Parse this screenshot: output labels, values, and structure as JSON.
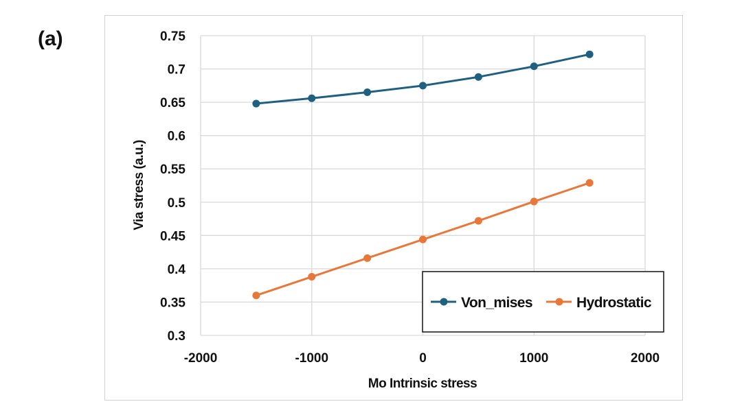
{
  "panel_label": "(a)",
  "chart_data": {
    "type": "line",
    "title": "",
    "xlabel": "Mo Intrinsic stress",
    "ylabel": "Via stress (a.u.)",
    "xlim": [
      -2000,
      2000
    ],
    "ylim": [
      0.3,
      0.75
    ],
    "xticks": [
      -2000,
      -1000,
      0,
      1000,
      2000
    ],
    "xtick_labels": [
      "-2000",
      "-1000",
      "0",
      "1000",
      "2000"
    ],
    "yticks": [
      0.3,
      0.35,
      0.4,
      0.45,
      0.5,
      0.55,
      0.6,
      0.65,
      0.7,
      0.75
    ],
    "ytick_labels": [
      "0.3",
      "0.35",
      "0.4",
      "0.45",
      "0.5",
      "0.55",
      "0.6",
      "0.65",
      "0.7",
      "0.75"
    ],
    "grid": true,
    "legend_position": "bottom-right",
    "x": [
      -1500,
      -1000,
      -500,
      0,
      500,
      1000,
      1500
    ],
    "series": [
      {
        "name": "Von_mises",
        "color": "#1f5f7f",
        "values": [
          0.648,
          0.656,
          0.665,
          0.675,
          0.688,
          0.704,
          0.722
        ]
      },
      {
        "name": "Hydrostatic",
        "color": "#e8773a",
        "values": [
          0.36,
          0.388,
          0.416,
          0.444,
          0.472,
          0.501,
          0.529
        ]
      }
    ]
  }
}
